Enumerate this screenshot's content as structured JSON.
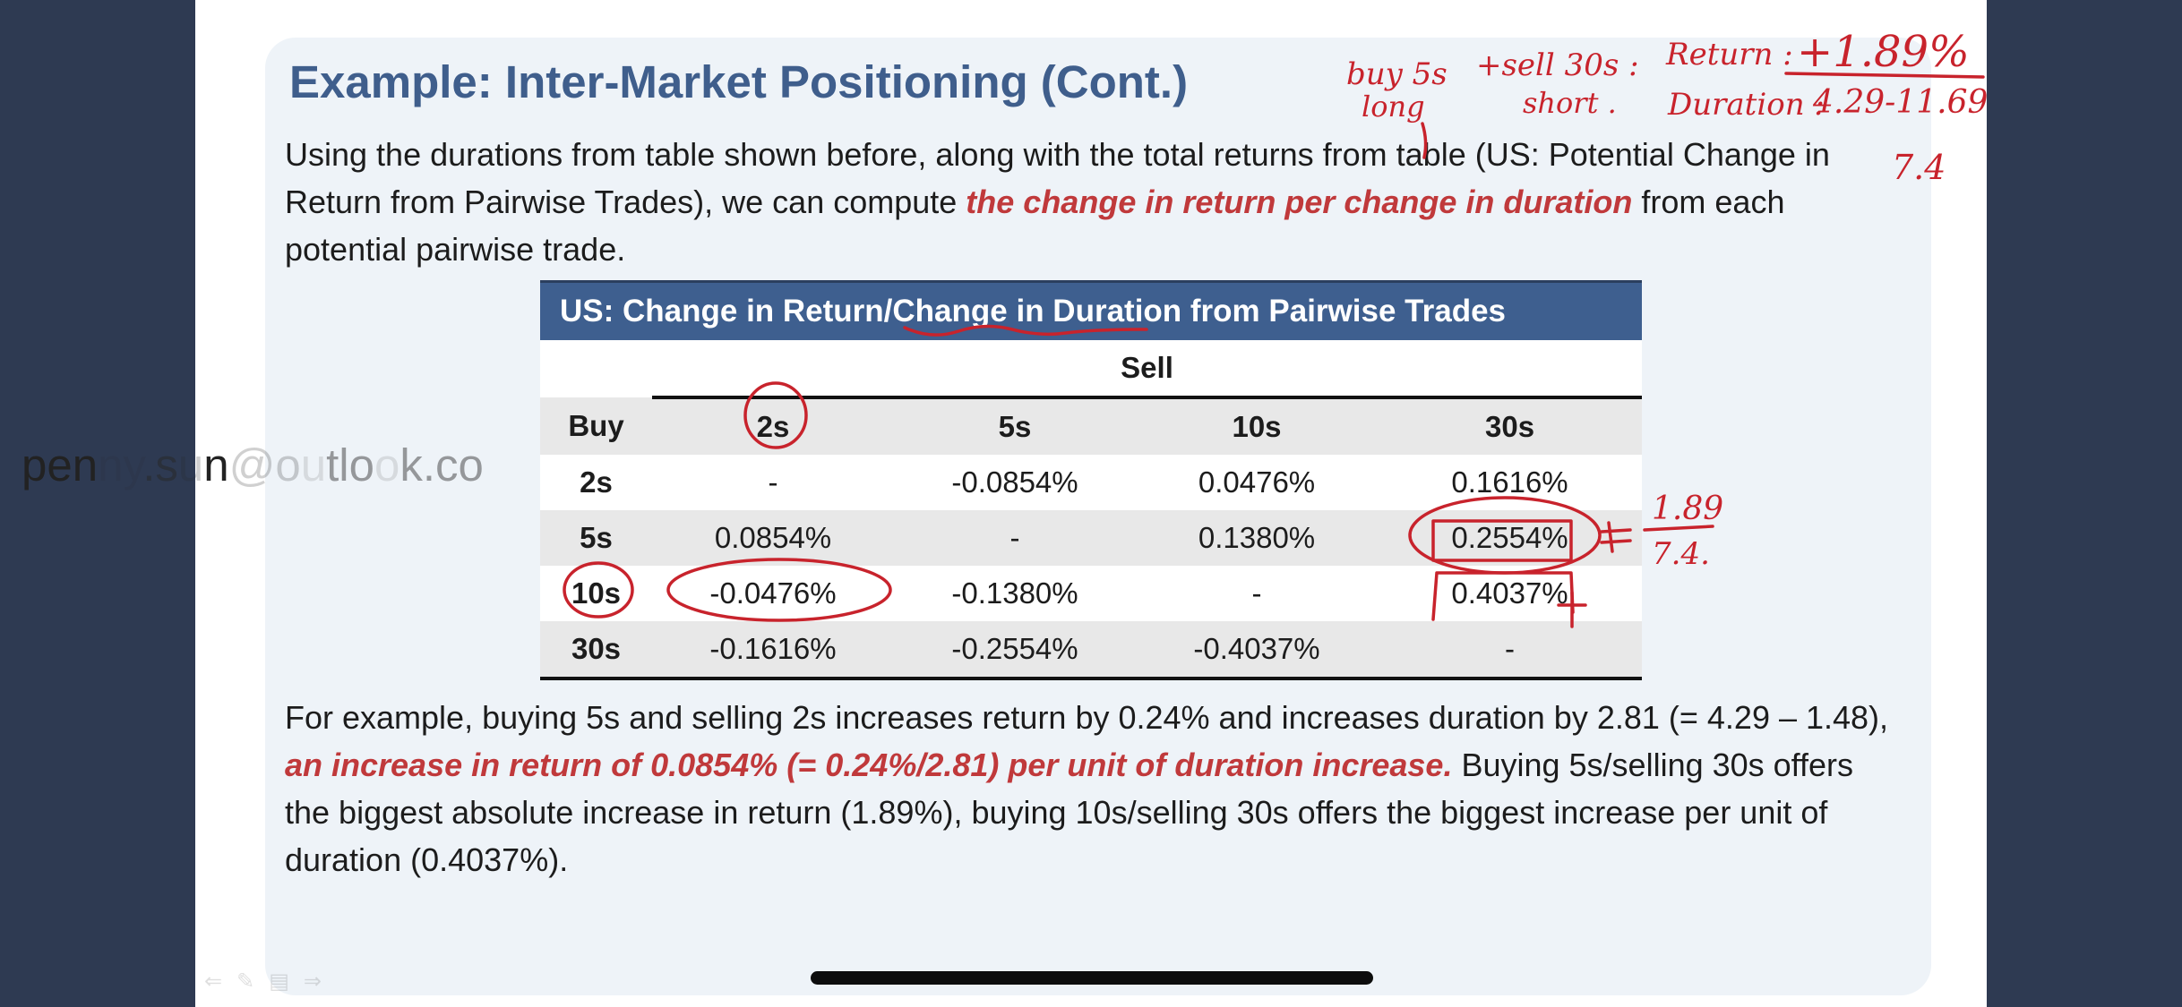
{
  "slide": {
    "title": "Example: Inter-Market Positioning (Cont.)",
    "intro": {
      "text_before": "Using the durations from table shown before, along with the total returns from table (US: Potential Change in Return from Pairwise Trades), we can compute ",
      "emphasis": "the change in return per change in duration",
      "text_after": " from each potential pairwise trade."
    },
    "table": {
      "caption": "US: Change in Return/Change in Duration from Pairwise Trades",
      "sell_label": "Sell",
      "buy_label": "Buy",
      "columns": [
        "2s",
        "5s",
        "10s",
        "30s"
      ],
      "rows": [
        {
          "label": "2s",
          "cells": [
            "-",
            "-0.0854%",
            "0.0476%",
            "0.1616%"
          ]
        },
        {
          "label": "5s",
          "cells": [
            "0.0854%",
            "-",
            "0.1380%",
            "0.2554%"
          ]
        },
        {
          "label": "10s",
          "cells": [
            "-0.0476%",
            "-0.1380%",
            "-",
            "0.4037%"
          ]
        },
        {
          "label": "30s",
          "cells": [
            "-0.1616%",
            "-0.2554%",
            "-0.4037%",
            "-"
          ]
        }
      ]
    },
    "example": {
      "text_before": "For example,  buying 5s and selling 2s increases return by 0.24% and increases duration by 2.81 (= 4.29 – 1.48), ",
      "emphasis": "an increase in return of 0.0854% (= 0.24%/2.81) per unit of duration increase.",
      "text_after": " Buying 5s/selling 30s offers the biggest absolute increase in return (1.89%), buying 10s/selling 30s offers the biggest increase per unit of duration (0.4037%)."
    }
  },
  "watermark": {
    "parts": [
      "pen",
      "ny",
      ".s",
      "u",
      "n",
      "@o",
      "u",
      "tlo",
      "o",
      "k.co"
    ]
  },
  "annotations": {
    "line1": "buy 5s",
    "line1b": "long",
    "line2": "+sell 30s :",
    "line2b": "short .",
    "return_label": "Return :",
    "return_value": "+1.89%",
    "duration_label": "Duration :",
    "duration_value": "4.29-11.69",
    "diff_value": "7.4",
    "ratio_top": "1.89",
    "ratio_bottom": "7.4."
  },
  "colors": {
    "title": "#3f5e8c",
    "emphasis": "#c0393b",
    "table_header": "#3e5f8f",
    "row_shade": "#e8e8e8",
    "page_background": "#2e3a52",
    "ink": "#c8232c"
  },
  "icons": [
    "back-arrow-icon",
    "pen-icon",
    "menu-icon",
    "forward-arrow-icon"
  ]
}
